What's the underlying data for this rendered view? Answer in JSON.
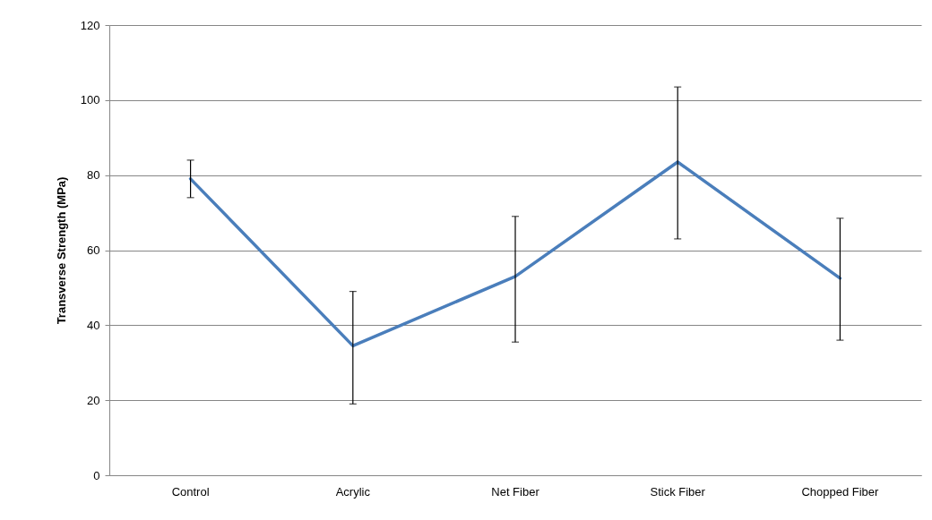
{
  "chart_data": {
    "type": "line",
    "ylabel": "Transverse Strength (MPa)",
    "categories": [
      "Control",
      "Acrylic",
      "Net Fiber",
      "Stick Fiber",
      "Chopped Fiber"
    ],
    "series": [
      {
        "color": "#4a7ebb",
        "values": [
          79,
          34.5,
          53,
          83.5,
          52.5
        ],
        "errors": [
          [
            74,
            84
          ],
          [
            19,
            49
          ],
          [
            35.5,
            69
          ],
          [
            63,
            103.5
          ],
          [
            36,
            68.5
          ]
        ]
      }
    ],
    "ylim": [
      0,
      120
    ],
    "yticks": [
      0,
      20,
      40,
      60,
      80,
      100,
      120
    ],
    "grid": "y"
  }
}
